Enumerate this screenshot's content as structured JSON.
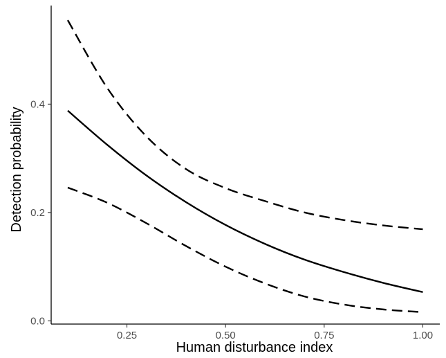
{
  "chart_data": {
    "type": "line",
    "title": "",
    "xlabel": "Human disturbance index",
    "ylabel": "Detection probability",
    "xlim": [
      0.058,
      1.043
    ],
    "ylim": [
      -0.006,
      0.582
    ],
    "x_ticks": [
      0.25,
      0.5,
      0.75,
      1.0
    ],
    "x_tick_labels": [
      "0.25",
      "0.50",
      "0.75",
      "1.00"
    ],
    "y_ticks": [
      0.0,
      0.2,
      0.4
    ],
    "y_tick_labels": [
      "0.0",
      "0.2",
      "0.4"
    ],
    "grid": false,
    "legend": "none",
    "series": [
      {
        "style": "solid",
        "x": [
          0.1,
          0.2,
          0.3,
          0.4,
          0.5,
          0.6,
          0.7,
          0.8,
          0.9,
          1.0
        ],
        "y": [
          0.388,
          0.325,
          0.268,
          0.219,
          0.177,
          0.142,
          0.113,
          0.09,
          0.07,
          0.053
        ]
      },
      {
        "style": "dashed",
        "x": [
          0.1,
          0.2,
          0.3,
          0.4,
          0.5,
          0.6,
          0.7,
          0.8,
          0.9,
          1.0
        ],
        "y": [
          0.555,
          0.43,
          0.34,
          0.28,
          0.245,
          0.221,
          0.2,
          0.186,
          0.176,
          0.169
        ]
      },
      {
        "style": "dashed",
        "x": [
          0.1,
          0.2,
          0.3,
          0.4,
          0.5,
          0.6,
          0.7,
          0.8,
          0.9,
          1.0
        ],
        "y": [
          0.246,
          0.218,
          0.18,
          0.138,
          0.1,
          0.069,
          0.045,
          0.03,
          0.021,
          0.016
        ]
      }
    ]
  }
}
